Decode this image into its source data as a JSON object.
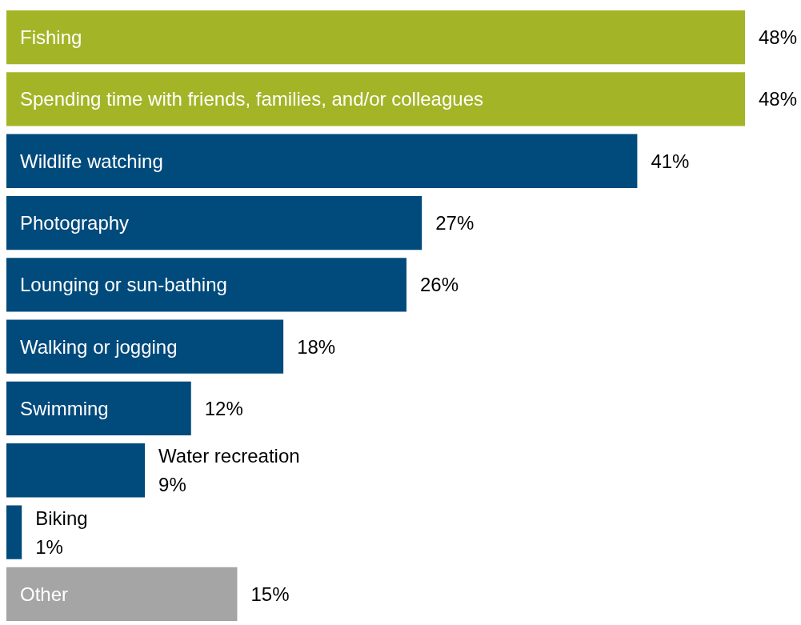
{
  "chart_data": {
    "type": "bar",
    "orientation": "horizontal",
    "categories": [
      "Fishing",
      "Spending time with friends, families, and/or colleagues",
      "Wildlife watching",
      "Photography",
      "Lounging or sun-bathing",
      "Walking or jogging",
      "Swimming",
      "Water recreation",
      "Biking",
      "Other"
    ],
    "values": [
      48,
      48,
      41,
      27,
      26,
      18,
      12,
      9,
      1,
      15
    ],
    "colors": [
      "#a3b527",
      "#a3b527",
      "#004a7c",
      "#004a7c",
      "#004a7c",
      "#004a7c",
      "#004a7c",
      "#004a7c",
      "#004a7c",
      "#a5a5a5"
    ],
    "value_labels": [
      "48%",
      "48%",
      "41%",
      "27%",
      "26%",
      "18%",
      "12%",
      "9%",
      "1%",
      "15%"
    ]
  }
}
